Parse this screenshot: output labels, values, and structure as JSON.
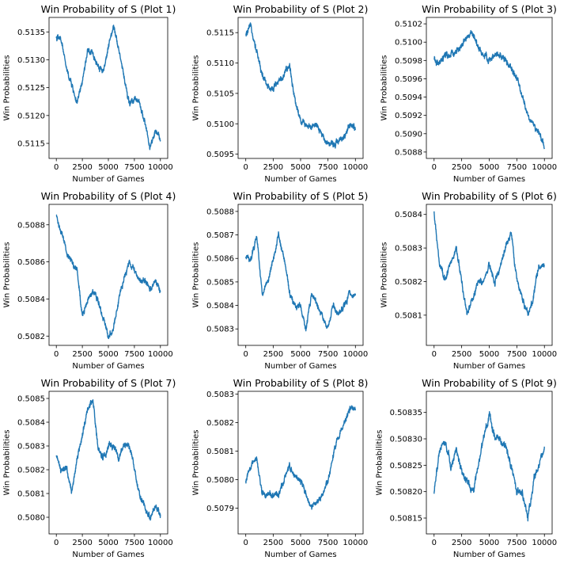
{
  "style": {
    "line_color": "#1f77b4",
    "axes_color": "#000000",
    "background": "#ffffff"
  },
  "chart_data": [
    {
      "type": "line",
      "title": "Win Probability of S (Plot 1)",
      "xlabel": "Number of Games",
      "ylabel": "Win Probabilities",
      "xlim": [
        -700,
        10700
      ],
      "ylim": [
        0.51123,
        0.51376
      ],
      "xticks": [
        0,
        2500,
        5000,
        7500,
        10000
      ],
      "xtick_labels": [
        "0",
        "2500",
        "5000",
        "7500",
        "10000"
      ],
      "yticks": [
        0.5115,
        0.512,
        0.5125,
        0.513,
        0.5135
      ],
      "ytick_labels": [
        "0.5115",
        "0.5120",
        "0.5125",
        "0.5130",
        "0.5135"
      ],
      "grid": false,
      "legend": false,
      "x": [
        0,
        500,
        1000,
        1500,
        2000,
        2500,
        3000,
        3500,
        4000,
        4500,
        5000,
        5500,
        6000,
        6500,
        7000,
        7500,
        8000,
        8500,
        9000,
        9500,
        10000
      ],
      "y": [
        0.5134,
        0.51335,
        0.5128,
        0.51255,
        0.5122,
        0.5126,
        0.51315,
        0.5131,
        0.5129,
        0.5128,
        0.5132,
        0.51365,
        0.5132,
        0.5127,
        0.5122,
        0.5123,
        0.5122,
        0.5119,
        0.5114,
        0.5117,
        0.51155
      ],
      "noise": 6e-05
    },
    {
      "type": "line",
      "title": "Win Probability of S (Plot 2)",
      "xlabel": "Number of Games",
      "ylabel": "Win Probabilities",
      "xlim": [
        -700,
        10700
      ],
      "ylim": [
        0.50943,
        0.51175
      ],
      "xticks": [
        0,
        2500,
        5000,
        7500,
        10000
      ],
      "xtick_labels": [
        "0",
        "2500",
        "5000",
        "7500",
        "10000"
      ],
      "yticks": [
        0.5095,
        0.51,
        0.5105,
        0.511,
        0.5115
      ],
      "ytick_labels": [
        "0.5095",
        "0.5100",
        "0.5105",
        "0.5110",
        "0.5115"
      ],
      "grid": false,
      "legend": false,
      "x": [
        0,
        500,
        1000,
        1500,
        2000,
        2500,
        3000,
        3500,
        4000,
        4500,
        5000,
        5500,
        6000,
        6500,
        7000,
        7500,
        8000,
        8500,
        9000,
        9500,
        10000
      ],
      "y": [
        0.51145,
        0.5116,
        0.5112,
        0.5108,
        0.5106,
        0.5106,
        0.5107,
        0.5108,
        0.51095,
        0.5104,
        0.51005,
        0.51,
        0.50995,
        0.50995,
        0.5098,
        0.5097,
        0.50965,
        0.50975,
        0.5098,
        0.50995,
        0.50995
      ],
      "noise": 6e-05
    },
    {
      "type": "line",
      "title": "Win Probability of S (Plot 3)",
      "xlabel": "Number of Games",
      "ylabel": "Win Probabilities",
      "xlim": [
        -700,
        10700
      ],
      "ylim": [
        0.50873,
        0.51027
      ],
      "xticks": [
        0,
        2500,
        5000,
        7500,
        10000
      ],
      "xtick_labels": [
        "0",
        "2500",
        "5000",
        "7500",
        "10000"
      ],
      "yticks": [
        0.5088,
        0.509,
        0.5092,
        0.5094,
        0.5096,
        0.5098,
        0.51,
        0.5102
      ],
      "ytick_labels": [
        "0.5088",
        "0.5090",
        "0.5092",
        "0.5094",
        "0.5096",
        "0.5098",
        "0.5100",
        "0.5102"
      ],
      "grid": false,
      "legend": false,
      "x": [
        0,
        500,
        1000,
        1500,
        2000,
        2500,
        3000,
        3500,
        4000,
        4500,
        5000,
        5500,
        6000,
        6500,
        7000,
        7500,
        8000,
        8500,
        9000,
        9500,
        10000
      ],
      "y": [
        0.5098,
        0.50975,
        0.50985,
        0.50985,
        0.5099,
        0.50995,
        0.51005,
        0.5101,
        0.50995,
        0.50985,
        0.5098,
        0.50985,
        0.50985,
        0.5098,
        0.5097,
        0.5096,
        0.5094,
        0.5092,
        0.5091,
        0.509,
        0.50885
      ],
      "noise": 4e-05
    },
    {
      "type": "line",
      "title": "Win Probability of S (Plot 4)",
      "xlabel": "Number of Games",
      "ylabel": "Win Probabilities",
      "xlim": [
        -700,
        10700
      ],
      "ylim": [
        0.50815,
        0.50891
      ],
      "xticks": [
        0,
        2500,
        5000,
        7500,
        10000
      ],
      "xtick_labels": [
        "0",
        "2500",
        "5000",
        "7500",
        "10000"
      ],
      "yticks": [
        0.5082,
        0.5084,
        0.5086,
        0.5088
      ],
      "ytick_labels": [
        "0.5082",
        "0.5084",
        "0.5086",
        "0.5088"
      ],
      "grid": false,
      "legend": false,
      "x": [
        0,
        500,
        1000,
        1500,
        2000,
        2500,
        3000,
        3500,
        4000,
        4500,
        5000,
        5500,
        6000,
        6500,
        7000,
        7500,
        8000,
        8500,
        9000,
        9500,
        10000
      ],
      "y": [
        0.50885,
        0.50875,
        0.50865,
        0.5086,
        0.50855,
        0.5083,
        0.5084,
        0.50845,
        0.5084,
        0.5083,
        0.5082,
        0.50825,
        0.5084,
        0.5085,
        0.5086,
        0.50855,
        0.5085,
        0.5085,
        0.50845,
        0.5085,
        0.50845
      ],
      "noise": 1.8e-05
    },
    {
      "type": "line",
      "title": "Win Probability of S (Plot 5)",
      "xlabel": "Number of Games",
      "ylabel": "Win Probabilities",
      "xlim": [
        -700,
        10700
      ],
      "ylim": [
        0.50823,
        0.50883
      ],
      "xticks": [
        0,
        2500,
        5000,
        7500,
        10000
      ],
      "xtick_labels": [
        "0",
        "2500",
        "5000",
        "7500",
        "10000"
      ],
      "yticks": [
        0.5083,
        0.5084,
        0.5085,
        0.5086,
        0.5087,
        0.5088
      ],
      "ytick_labels": [
        "0.5083",
        "0.5084",
        "0.5085",
        "0.5086",
        "0.5087",
        "0.5088"
      ],
      "grid": false,
      "legend": false,
      "x": [
        0,
        500,
        1000,
        1500,
        2000,
        2500,
        3000,
        3500,
        4000,
        4500,
        5000,
        5500,
        6000,
        6500,
        7000,
        7500,
        8000,
        8500,
        9000,
        9500,
        10000
      ],
      "y": [
        0.5086,
        0.5086,
        0.5087,
        0.50845,
        0.5085,
        0.5086,
        0.5087,
        0.5086,
        0.50845,
        0.5084,
        0.5084,
        0.5083,
        0.50845,
        0.5084,
        0.50835,
        0.5083,
        0.5084,
        0.50835,
        0.5084,
        0.50845,
        0.50845
      ],
      "noise": 1.4e-05
    },
    {
      "type": "line",
      "title": "Win Probability of S (Plot 6)",
      "xlabel": "Number of Games",
      "ylabel": "Win Probabilities",
      "xlim": [
        -700,
        10700
      ],
      "ylim": [
        0.50801,
        0.50843
      ],
      "xticks": [
        0,
        2500,
        5000,
        7500,
        10000
      ],
      "xtick_labels": [
        "0",
        "2500",
        "5000",
        "7500",
        "10000"
      ],
      "yticks": [
        0.5081,
        0.5082,
        0.5083,
        0.5084
      ],
      "ytick_labels": [
        "0.5081",
        "0.5082",
        "0.5083",
        "0.5084"
      ],
      "grid": false,
      "legend": false,
      "x": [
        0,
        500,
        1000,
        1500,
        2000,
        2500,
        3000,
        3500,
        4000,
        4500,
        5000,
        5500,
        6000,
        6500,
        7000,
        7500,
        8000,
        8500,
        9000,
        9500,
        10000
      ],
      "y": [
        0.5084,
        0.50825,
        0.5082,
        0.50825,
        0.5083,
        0.5082,
        0.5081,
        0.50815,
        0.5082,
        0.5082,
        0.50825,
        0.5082,
        0.50825,
        0.5083,
        0.50835,
        0.5082,
        0.50815,
        0.5081,
        0.50815,
        0.50825,
        0.50825
      ],
      "noise": 1.1e-05
    },
    {
      "type": "line",
      "title": "Win Probability of S (Plot 7)",
      "xlabel": "Number of Games",
      "ylabel": "Win Probabilities",
      "xlim": [
        -700,
        10700
      ],
      "ylim": [
        0.50793,
        0.50853
      ],
      "xticks": [
        0,
        2500,
        5000,
        7500,
        10000
      ],
      "xtick_labels": [
        "0",
        "2500",
        "5000",
        "7500",
        "10000"
      ],
      "yticks": [
        0.508,
        0.5081,
        0.5082,
        0.5083,
        0.5084,
        0.5085
      ],
      "ytick_labels": [
        "0.5080",
        "0.5081",
        "0.5082",
        "0.5083",
        "0.5084",
        "0.5085"
      ],
      "grid": false,
      "legend": false,
      "x": [
        0,
        500,
        1000,
        1500,
        2000,
        2500,
        3000,
        3500,
        4000,
        4500,
        5000,
        5500,
        6000,
        6500,
        7000,
        7500,
        8000,
        8500,
        9000,
        9500,
        10000
      ],
      "y": [
        0.50825,
        0.5082,
        0.5082,
        0.5081,
        0.50825,
        0.50835,
        0.50845,
        0.5085,
        0.5083,
        0.50825,
        0.5083,
        0.5083,
        0.50825,
        0.5083,
        0.5083,
        0.5082,
        0.5081,
        0.50805,
        0.508,
        0.50805,
        0.508
      ],
      "noise": 1.5e-05
    },
    {
      "type": "line",
      "title": "Win Probability of S (Plot 8)",
      "xlabel": "Number of Games",
      "ylabel": "Win Probabilities",
      "xlim": [
        -700,
        10700
      ],
      "ylim": [
        0.50781,
        0.50831
      ],
      "xticks": [
        0,
        2500,
        5000,
        7500,
        10000
      ],
      "xtick_labels": [
        "0",
        "2500",
        "5000",
        "7500",
        "10000"
      ],
      "yticks": [
        0.5079,
        0.508,
        0.5081,
        0.5082,
        0.5083
      ],
      "ytick_labels": [
        "0.5079",
        "0.5080",
        "0.5081",
        "0.5082",
        "0.5083"
      ],
      "grid": false,
      "legend": false,
      "x": [
        0,
        500,
        1000,
        1500,
        2000,
        2500,
        3000,
        3500,
        4000,
        4500,
        5000,
        5500,
        6000,
        6500,
        7000,
        7500,
        8000,
        8500,
        9000,
        9500,
        10000
      ],
      "y": [
        0.508,
        0.50805,
        0.50808,
        0.50795,
        0.50795,
        0.50795,
        0.50795,
        0.508,
        0.50805,
        0.508,
        0.508,
        0.50795,
        0.5079,
        0.50792,
        0.50795,
        0.508,
        0.5081,
        0.50815,
        0.5082,
        0.50825,
        0.50825
      ],
      "noise": 1.2e-05
    },
    {
      "type": "line",
      "title": "Win Probability of S (Plot 9)",
      "xlabel": "Number of Games",
      "ylabel": "Win Probabilities",
      "xlim": [
        -700,
        10700
      ],
      "ylim": [
        0.50812,
        0.50839
      ],
      "xticks": [
        0,
        2500,
        5000,
        7500,
        10000
      ],
      "xtick_labels": [
        "0",
        "2500",
        "5000",
        "7500",
        "10000"
      ],
      "yticks": [
        0.50815,
        0.5082,
        0.50825,
        0.5083,
        0.50835
      ],
      "ytick_labels": [
        "0.50815",
        "0.50820",
        "0.50825",
        "0.50830",
        "0.50835"
      ],
      "grid": false,
      "legend": false,
      "x": [
        0,
        500,
        1000,
        1500,
        2000,
        2500,
        3000,
        3500,
        4000,
        4500,
        5000,
        5500,
        6000,
        6500,
        7000,
        7500,
        8000,
        8500,
        9000,
        9500,
        10000
      ],
      "y": [
        0.5082,
        0.50828,
        0.5083,
        0.50825,
        0.50828,
        0.50824,
        0.50822,
        0.5082,
        0.50825,
        0.5083,
        0.50835,
        0.5083,
        0.5083,
        0.50828,
        0.50825,
        0.5082,
        0.5082,
        0.50815,
        0.50822,
        0.50825,
        0.50828
      ],
      "noise": 8e-06
    }
  ]
}
